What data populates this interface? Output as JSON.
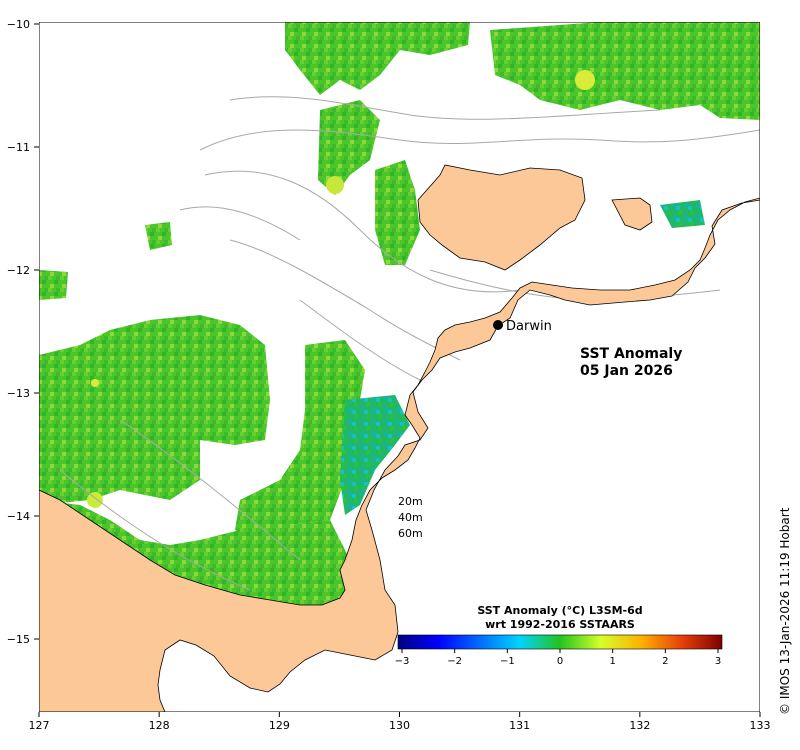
{
  "map": {
    "title_line1": "SST Anomaly",
    "title_line2": "05 Jan 2026",
    "place": "Darwin",
    "contours": [
      "20m",
      "40m",
      "60m"
    ],
    "x_ticks": [
      "127",
      "128",
      "129",
      "130",
      "131",
      "132",
      "133"
    ],
    "y_ticks": [
      "−10",
      "−11",
      "−12",
      "−13",
      "−14",
      "−15"
    ],
    "land_color": "#fcc898",
    "credit": "© IMOS 13-Jan-2026 11:19 Hobart"
  },
  "colorbar": {
    "title_line1": "SST Anomaly (°C) L3SM-6d",
    "title_line2": "wrt 1992-2016 SSTAARS",
    "ticks": [
      "−3",
      "−2",
      "−1",
      "0",
      "1",
      "2",
      "3"
    ],
    "range": [
      -3,
      3
    ]
  }
}
